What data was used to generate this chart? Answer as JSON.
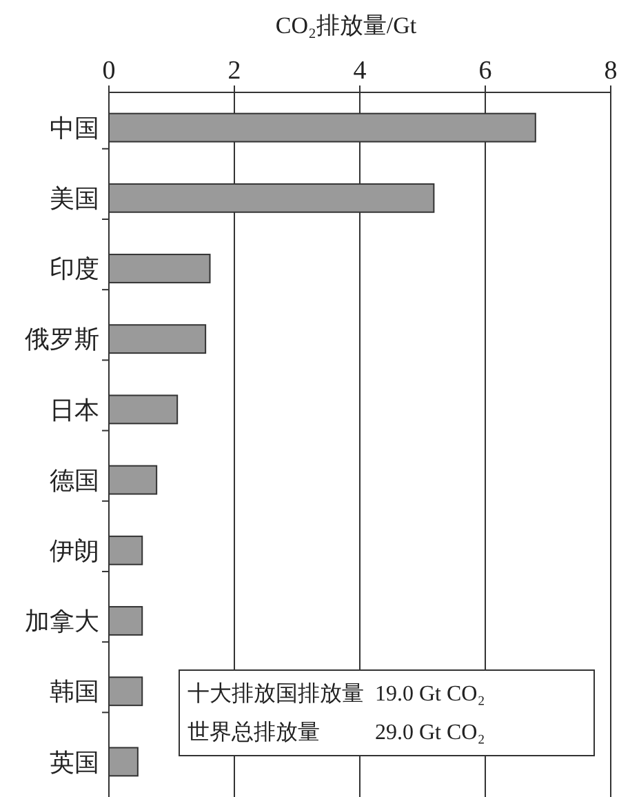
{
  "chart_data": {
    "type": "bar",
    "orientation": "horizontal",
    "xlabel": "CO₂排放量/Gt",
    "categories": [
      "中国",
      "美国",
      "印度",
      "俄罗斯",
      "日本",
      "德国",
      "伊朗",
      "加拿大",
      "韩国",
      "英国"
    ],
    "values": [
      6.8,
      5.18,
      1.61,
      1.54,
      1.09,
      0.76,
      0.53,
      0.53,
      0.53,
      0.46
    ],
    "color": "#9a9a9a",
    "xlim": [
      0,
      8
    ],
    "xticks": [
      0,
      2,
      4,
      6,
      8
    ],
    "grid": "x",
    "annotations": [
      "十大排放国排放量  19.0 Gt CO₂",
      "世界总排放量          29.0 Gt CO₂"
    ]
  }
}
